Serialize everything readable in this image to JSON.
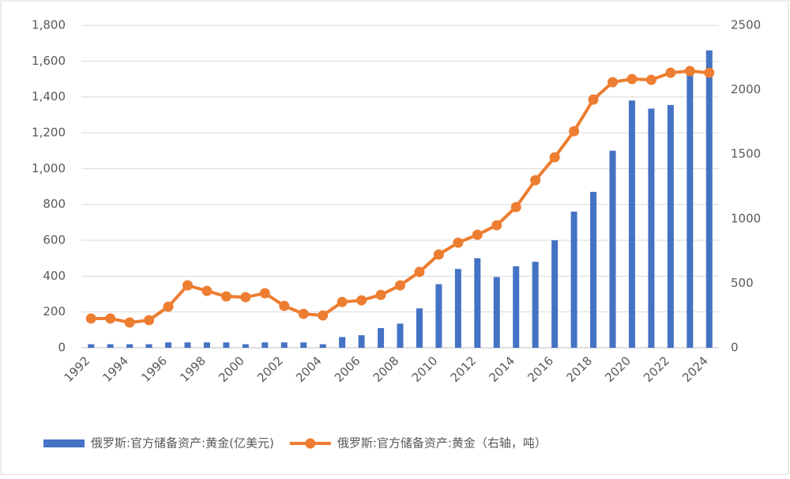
{
  "chart_data": {
    "type": "bar-line",
    "categories": [
      "1992",
      null,
      "1994",
      null,
      "1996",
      null,
      "1998",
      null,
      "2000",
      null,
      "2002",
      null,
      "2004",
      null,
      "2006",
      null,
      "2008",
      null,
      "2010",
      null,
      "2012",
      null,
      "2014",
      null,
      "2016",
      null,
      "2018",
      null,
      "2020",
      null,
      "2022",
      null,
      "2024"
    ],
    "series": [
      {
        "name": "俄罗斯:官方储备资产:黄金(亿美元)",
        "type": "bar",
        "color": "#4472c4",
        "values": [
          20,
          20,
          20,
          20,
          30,
          30,
          30,
          30,
          20,
          30,
          30,
          30,
          20,
          60,
          70,
          110,
          135,
          220,
          355,
          440,
          500,
          395,
          455,
          480,
          600,
          760,
          870,
          1100,
          1380,
          1335,
          1355,
          1520,
          1660
        ]
      },
      {
        "name": "俄罗斯:官方储备资产:黄金（右轴，吨）",
        "type": "line",
        "axis": "y2",
        "color": "#ed7d31",
        "values": [
          227,
          227,
          196,
          214,
          319,
          484,
          441,
          398,
          392,
          423,
          325,
          263,
          251,
          355,
          368,
          410,
          484,
          588,
          723,
          815,
          876,
          950,
          1091,
          1299,
          1477,
          1679,
          1924,
          2059,
          2083,
          2077,
          2132,
          2145,
          2132
        ]
      }
    ],
    "ylim": [
      0,
      1800
    ],
    "yticks": [
      0,
      200,
      400,
      600,
      800,
      {
        "value": 1000,
        "label": "1,000"
      },
      {
        "value": 1200,
        "label": "1,200"
      },
      {
        "value": 1400,
        "label": "1,400"
      },
      {
        "value": 1600,
        "label": "1,600"
      },
      {
        "value": 1800,
        "label": "1,800"
      }
    ],
    "y2lim": [
      0,
      2500
    ],
    "y2ticks": [
      0,
      500,
      1000,
      1500,
      2000,
      2500
    ],
    "grid": true
  }
}
